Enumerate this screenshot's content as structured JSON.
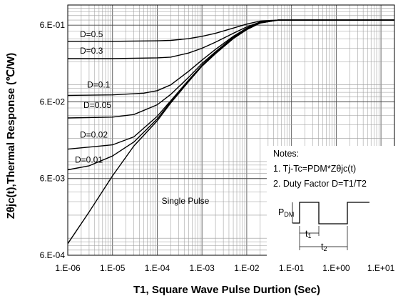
{
  "chart_data": {
    "type": "line",
    "xlabel": "T1,  Square Wave Pulse Durtion (Sec)",
    "ylabel": "Zθjc(t),Thermal Response (℃/W)",
    "x_scale": "log",
    "y_scale": "log",
    "xlim": [
      1e-06,
      20
    ],
    "ylim": [
      0.0006,
      1.1
    ],
    "x_tick_labels": [
      "1.E-06",
      "1.E-05",
      "1.E-04",
      "1.E-03",
      "1.E-02",
      "1.E-01",
      "1.E+00",
      "1.E+01"
    ],
    "x_tick_values": [
      1e-06,
      1e-05,
      0.0001,
      0.001,
      0.01,
      0.1,
      1,
      10
    ],
    "y_tick_labels": [
      "6.E-04",
      "6.E-03",
      "6.E-02",
      "6.E-01"
    ],
    "y_tick_values": [
      0.0006,
      0.006,
      0.06,
      0.6
    ],
    "grid": true,
    "series": [
      {
        "name": "D=0.5",
        "x": [
          1e-06,
          1e-05,
          0.0001,
          0.0002,
          0.0005,
          0.001,
          0.002,
          0.005,
          0.01,
          0.02,
          0.05,
          0.1,
          1,
          20
        ],
        "y": [
          0.37,
          0.37,
          0.375,
          0.38,
          0.4,
          0.43,
          0.47,
          0.55,
          0.62,
          0.68,
          0.7,
          0.7,
          0.7,
          0.7
        ]
      },
      {
        "name": "D=0.3",
        "x": [
          1e-06,
          1e-05,
          0.0001,
          0.0002,
          0.0005,
          0.001,
          0.002,
          0.005,
          0.01,
          0.02,
          0.05,
          0.1,
          1,
          20
        ],
        "y": [
          0.22,
          0.22,
          0.225,
          0.23,
          0.26,
          0.3,
          0.36,
          0.47,
          0.57,
          0.66,
          0.7,
          0.7,
          0.7,
          0.7
        ]
      },
      {
        "name": "D=0.1",
        "x": [
          1e-06,
          1e-05,
          5e-05,
          0.0001,
          0.0002,
          0.0005,
          0.001,
          0.002,
          0.005,
          0.01,
          0.02,
          0.05,
          0.1,
          1,
          20
        ],
        "y": [
          0.073,
          0.074,
          0.078,
          0.084,
          0.1,
          0.15,
          0.21,
          0.29,
          0.43,
          0.55,
          0.65,
          0.7,
          0.7,
          0.7,
          0.7
        ]
      },
      {
        "name": "D=0.05",
        "x": [
          1e-06,
          1e-05,
          3e-05,
          0.0001,
          0.0002,
          0.0005,
          0.001,
          0.002,
          0.005,
          0.01,
          0.02,
          0.05,
          0.1,
          1,
          20
        ],
        "y": [
          0.037,
          0.038,
          0.041,
          0.055,
          0.075,
          0.125,
          0.19,
          0.27,
          0.42,
          0.54,
          0.65,
          0.7,
          0.7,
          0.7,
          0.7
        ]
      },
      {
        "name": "D=0.02",
        "x": [
          1e-06,
          1e-05,
          3e-05,
          0.0001,
          0.0002,
          0.0005,
          0.001,
          0.002,
          0.005,
          0.01,
          0.02,
          0.05,
          0.1,
          1,
          20
        ],
        "y": [
          0.0145,
          0.0165,
          0.021,
          0.039,
          0.062,
          0.115,
          0.18,
          0.265,
          0.41,
          0.535,
          0.645,
          0.7,
          0.7,
          0.7,
          0.7
        ]
      },
      {
        "name": "D=0.01",
        "x": [
          1e-06,
          3e-06,
          1e-05,
          3e-05,
          0.0001,
          0.0002,
          0.0005,
          0.001,
          0.002,
          0.005,
          0.01,
          0.02,
          0.05,
          0.1,
          1,
          20
        ],
        "y": [
          0.0078,
          0.0088,
          0.0118,
          0.018,
          0.036,
          0.06,
          0.112,
          0.178,
          0.26,
          0.405,
          0.53,
          0.64,
          0.7,
          0.7,
          0.7,
          0.7
        ]
      },
      {
        "name": "Single Pulse",
        "x": [
          1e-06,
          3e-06,
          1e-05,
          3e-05,
          0.0001,
          0.0002,
          0.0005,
          0.001,
          0.002,
          0.005,
          0.01,
          0.02,
          0.05,
          0.1,
          1,
          20
        ],
        "y": [
          0.00085,
          0.0022,
          0.0065,
          0.016,
          0.034,
          0.058,
          0.11,
          0.175,
          0.255,
          0.4,
          0.525,
          0.64,
          0.7,
          0.7,
          0.7,
          0.7
        ]
      }
    ],
    "curve_labels": [
      "D=0.5",
      "D=0.3",
      "D=0.1",
      "D=0.05",
      "D=0.02",
      "D=0.01",
      "Single Pulse"
    ],
    "notes": {
      "title": "Notes:",
      "line1": "1. Tj-Tc=PDM*Zθjc(t)",
      "line2": "2. Duty Factor D=T1/T2"
    },
    "inset": {
      "pdm_main": "P",
      "pdm_sub": "DM",
      "t1_main": "t",
      "t1_sub": "1",
      "t2_main": "t",
      "t2_sub": "2"
    }
  }
}
